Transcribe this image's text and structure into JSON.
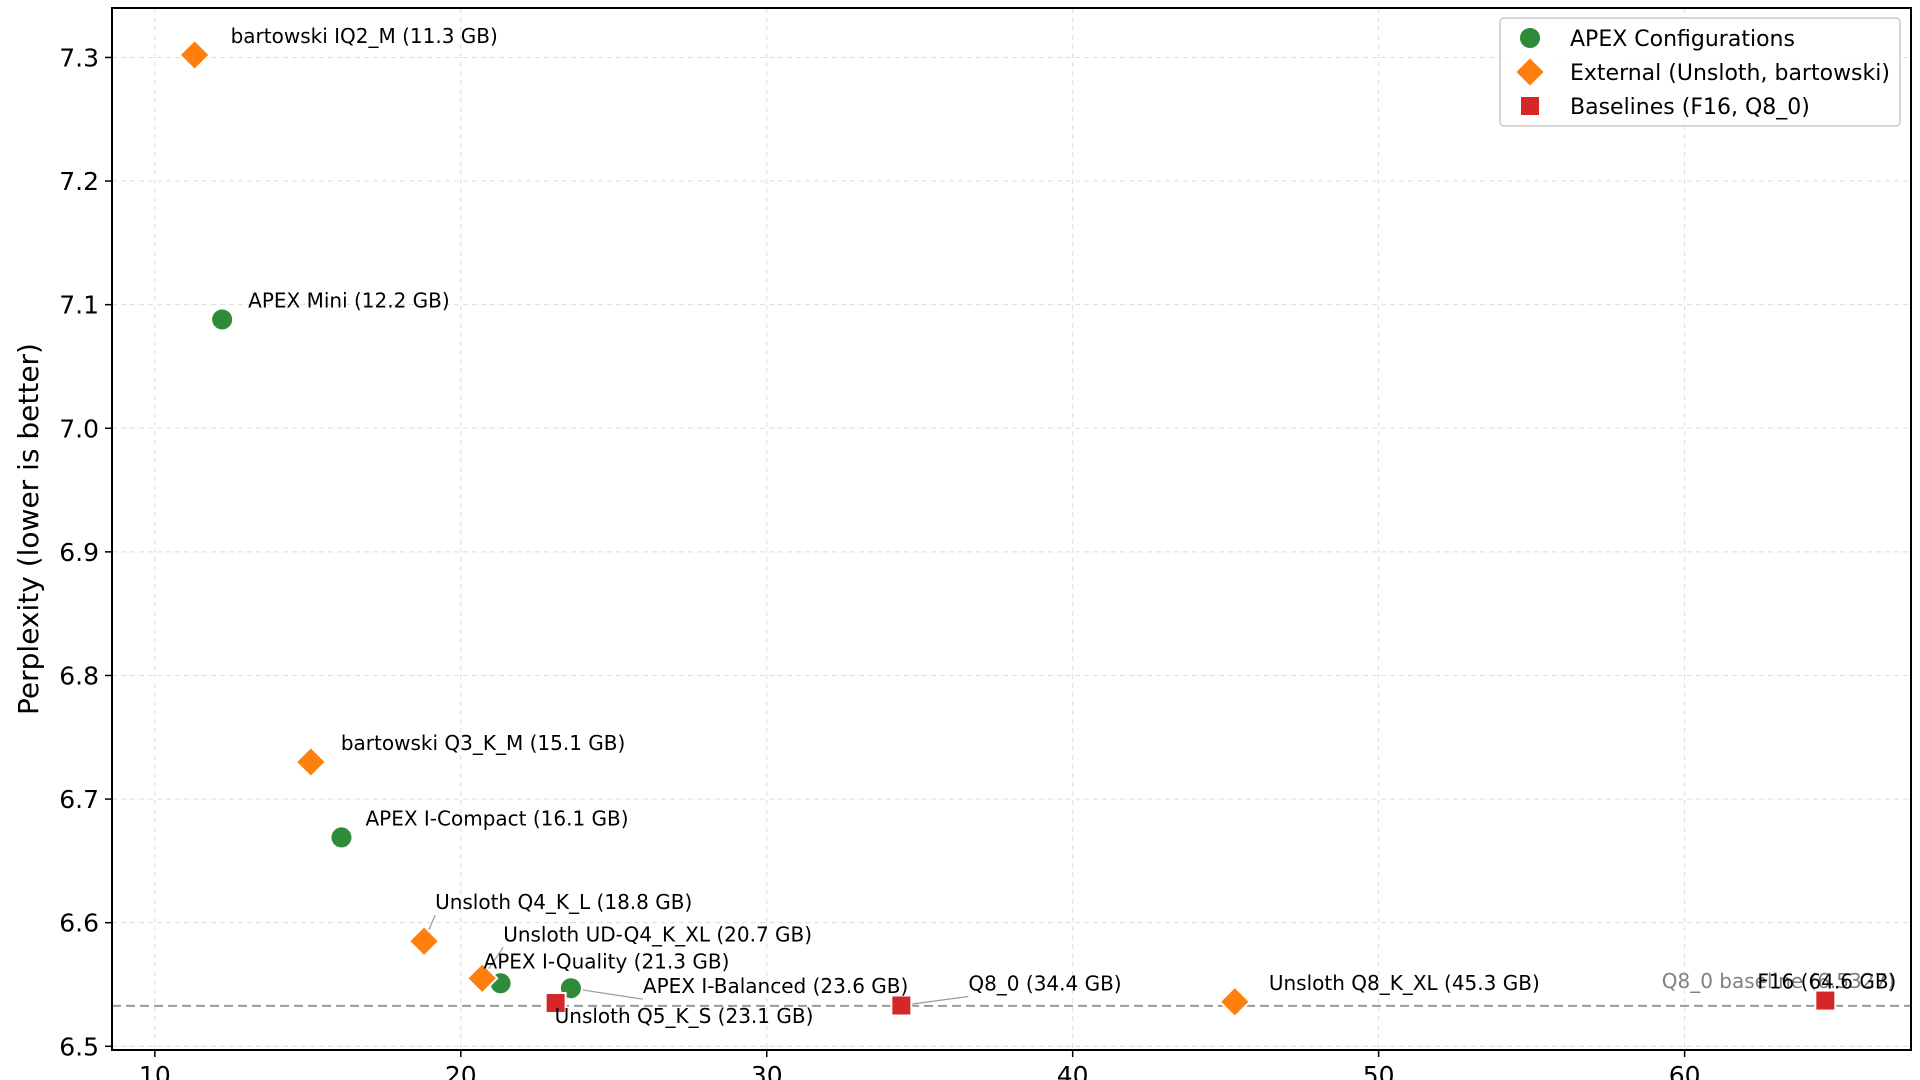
{
  "chart_data": {
    "type": "scatter",
    "xlabel": "",
    "ylabel": "Perplexity (lower is better)",
    "xlim": [
      8.6,
      67.4
    ],
    "ylim": [
      6.497,
      7.34
    ],
    "x_ticks": [
      10,
      20,
      30,
      40,
      50,
      60
    ],
    "y_ticks": [
      6.5,
      6.6,
      6.7,
      6.8,
      6.9,
      7.0,
      7.1,
      7.2,
      7.3
    ],
    "grid": true,
    "legend_position": "top-right",
    "colors": {
      "apex": "#2e8b3a",
      "external": "#ff7f0e",
      "baseline": "#d62728",
      "reference_line": "#999999",
      "grid": "#dddddd"
    },
    "series": [
      {
        "name": "APEX Configurations",
        "marker": "circle",
        "points": [
          {
            "x": 12.2,
            "y": 7.088,
            "label": "APEX Mini (12.2 GB)"
          },
          {
            "x": 16.1,
            "y": 6.669,
            "label": "APEX I-Compact (16.1 GB)"
          },
          {
            "x": 21.3,
            "y": 6.551,
            "label": "APEX I-Quality (21.3 GB)"
          },
          {
            "x": 23.6,
            "y": 6.547,
            "label": "APEX I-Balanced (23.6 GB)"
          }
        ]
      },
      {
        "name": "External (Unsloth, bartowski)",
        "marker": "diamond",
        "points": [
          {
            "x": 11.3,
            "y": 7.302,
            "label": "bartowski IQ2_M (11.3 GB)"
          },
          {
            "x": 15.1,
            "y": 6.73,
            "label": "bartowski Q3_K_M (15.1 GB)"
          },
          {
            "x": 18.8,
            "y": 6.585,
            "label": "Unsloth Q4_K_L (18.8 GB)"
          },
          {
            "x": 20.7,
            "y": 6.555,
            "label": "Unsloth UD-Q4_K_XL (20.7 GB)"
          },
          {
            "x": 45.3,
            "y": 6.536,
            "label": "Unsloth Q8_K_XL (45.3 GB)"
          }
        ]
      },
      {
        "name": "Baselines (F16, Q8_0)",
        "marker": "square",
        "points": [
          {
            "x": 23.1,
            "y": 6.535,
            "label": "Unsloth Q5_K_S (23.1 GB)"
          },
          {
            "x": 34.4,
            "y": 6.533,
            "label": "Q8_0 (34.4 GB)"
          },
          {
            "x": 64.6,
            "y": 6.537,
            "label": "F16 (64.6 GB)"
          }
        ]
      }
    ],
    "reference_line": {
      "y": 6.5327,
      "label": "Q8_0 baseline (6.5327)"
    }
  }
}
